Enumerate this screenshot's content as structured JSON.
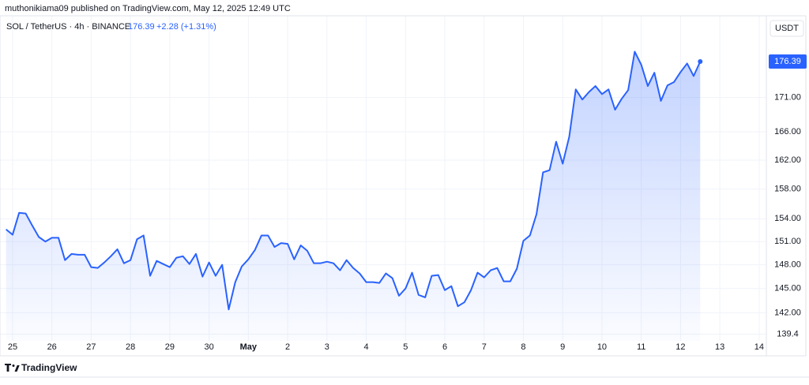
{
  "chart_data": {
    "type": "area-line",
    "publisher_line": "muthonikiama09 published on TradingView.com, May 12, 2025 12:49 UTC",
    "symbol": "SOL / TetherUS · 4h · BINANCE",
    "last_price": 176.39,
    "change_label": "+2.28 (+1.31%)",
    "currency": "USDT",
    "brand": "TradingView",
    "color": "#2962ff",
    "log_scale": true,
    "grid": true,
    "x": [
      -4,
      0,
      4,
      8,
      12,
      16,
      20,
      24,
      28,
      32,
      36,
      40,
      44,
      48,
      52,
      56,
      60,
      64,
      68,
      72,
      76,
      80,
      84,
      88,
      92,
      96,
      100,
      104,
      108,
      112,
      116,
      120,
      124,
      128,
      132,
      136,
      140,
      144,
      148,
      152,
      156,
      160,
      164,
      168,
      172,
      176,
      180,
      184,
      188,
      192,
      196,
      200,
      204,
      208,
      212,
      216,
      220,
      224,
      228,
      232,
      236,
      240,
      244,
      248,
      252,
      256,
      260,
      264,
      268,
      272,
      276,
      280,
      284,
      288,
      292,
      296,
      300,
      304,
      308,
      312,
      316,
      320,
      324,
      328,
      332,
      336,
      340,
      344,
      348,
      352,
      356,
      360,
      364,
      368,
      372,
      376,
      380,
      384,
      388,
      392,
      396,
      400,
      404,
      408,
      412,
      416,
      420
    ],
    "values": [
      152.6,
      151.9,
      154.8,
      154.7,
      153.1,
      151.6,
      151.0,
      151.5,
      151.5,
      148.6,
      149.4,
      149.3,
      149.3,
      147.7,
      147.6,
      148.3,
      149.1,
      150.0,
      148.2,
      148.6,
      151.3,
      151.8,
      146.6,
      148.5,
      148.1,
      147.7,
      148.9,
      149.1,
      148.1,
      149.4,
      146.5,
      148.3,
      146.6,
      148.0,
      142.4,
      145.8,
      147.8,
      148.7,
      149.9,
      151.8,
      151.8,
      150.3,
      150.8,
      150.7,
      148.7,
      150.5,
      149.8,
      148.2,
      148.2,
      148.4,
      148.2,
      147.3,
      148.6,
      147.6,
      146.9,
      145.8,
      145.8,
      145.7,
      146.9,
      146.3,
      144.1,
      145.0,
      147.0,
      144.2,
      143.9,
      146.6,
      146.7,
      144.8,
      145.3,
      142.8,
      143.3,
      144.8,
      147.0,
      146.4,
      147.3,
      147.6,
      145.9,
      145.9,
      147.5,
      151.1,
      151.8,
      154.6,
      160.3,
      160.6,
      164.6,
      161.5,
      165.3,
      172.2,
      170.7,
      171.8,
      172.7,
      171.5,
      172.2,
      169.2,
      170.8,
      172.1,
      177.9,
      175.9,
      172.7,
      174.7,
      170.5,
      172.8,
      173.3,
      174.8,
      176.1,
      174.2,
      176.39
    ],
    "xlim": [
      -7.7,
      460.4
    ],
    "xticks": [
      {
        "value": 0,
        "label": "25"
      },
      {
        "value": 24,
        "label": "26"
      },
      {
        "value": 48,
        "label": "27"
      },
      {
        "value": 72,
        "label": "28"
      },
      {
        "value": 96,
        "label": "29"
      },
      {
        "value": 120,
        "label": "30"
      },
      {
        "value": 144,
        "label": "May"
      },
      {
        "value": 168,
        "label": "2"
      },
      {
        "value": 192,
        "label": "3"
      },
      {
        "value": 216,
        "label": "4"
      },
      {
        "value": 240,
        "label": "5"
      },
      {
        "value": 264,
        "label": "6"
      },
      {
        "value": 288,
        "label": "7"
      },
      {
        "value": 312,
        "label": "8"
      },
      {
        "value": 336,
        "label": "9"
      },
      {
        "value": 360,
        "label": "10"
      },
      {
        "value": 384,
        "label": "11"
      },
      {
        "value": 408,
        "label": "12"
      },
      {
        "value": 432,
        "label": "13"
      },
      {
        "value": 456,
        "label": "14"
      }
    ],
    "ylim": [
      138.6,
      183.5
    ],
    "yticks": [
      {
        "value": 171,
        "label": "171.00"
      },
      {
        "value": 166,
        "label": "166.00"
      },
      {
        "value": 162,
        "label": "162.00"
      },
      {
        "value": 158,
        "label": "158.00"
      },
      {
        "value": 154,
        "label": "154.00"
      },
      {
        "value": 151,
        "label": "151.00"
      },
      {
        "value": 148,
        "label": "148.00"
      },
      {
        "value": 145,
        "label": "145.00"
      },
      {
        "value": 142,
        "label": "142.00"
      },
      139.4
    ]
  }
}
